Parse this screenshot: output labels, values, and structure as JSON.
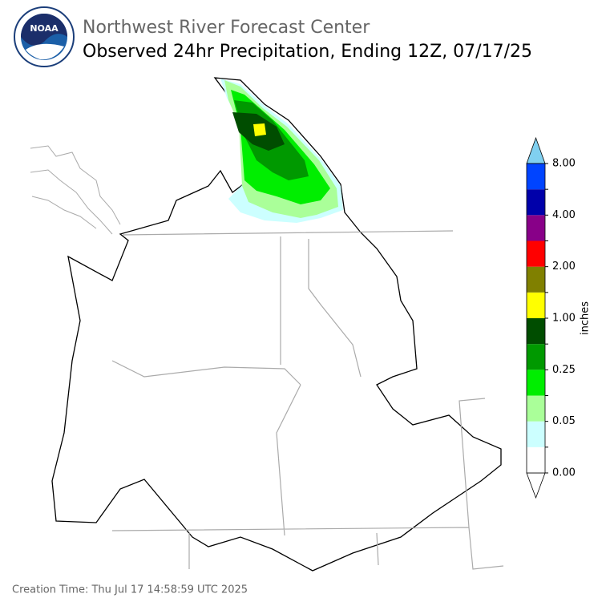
{
  "logo": {
    "text": "NOAA"
  },
  "header": {
    "title": "Northwest River Forecast Center",
    "subtitle": "Observed 24hr Precipitation, Ending 12Z, 07/17/25"
  },
  "colorbar": {
    "label": "inches",
    "colors": [
      "#ffffff",
      "#ccffff",
      "#aaff99",
      "#00ee00",
      "#009900",
      "#004d00",
      "#ffff00",
      "#808000",
      "#ff0000",
      "#880088",
      "#0000aa",
      "#0044ff"
    ],
    "over_color": "#80d0f0",
    "tick_labels": [
      "0.00",
      "0.05",
      "0.25",
      "1.00",
      "2.00",
      "4.00",
      "8.00"
    ]
  },
  "footer": {
    "creation_time": "Creation Time: Thu Jul 17 14:58:59 UTC 2025"
  }
}
